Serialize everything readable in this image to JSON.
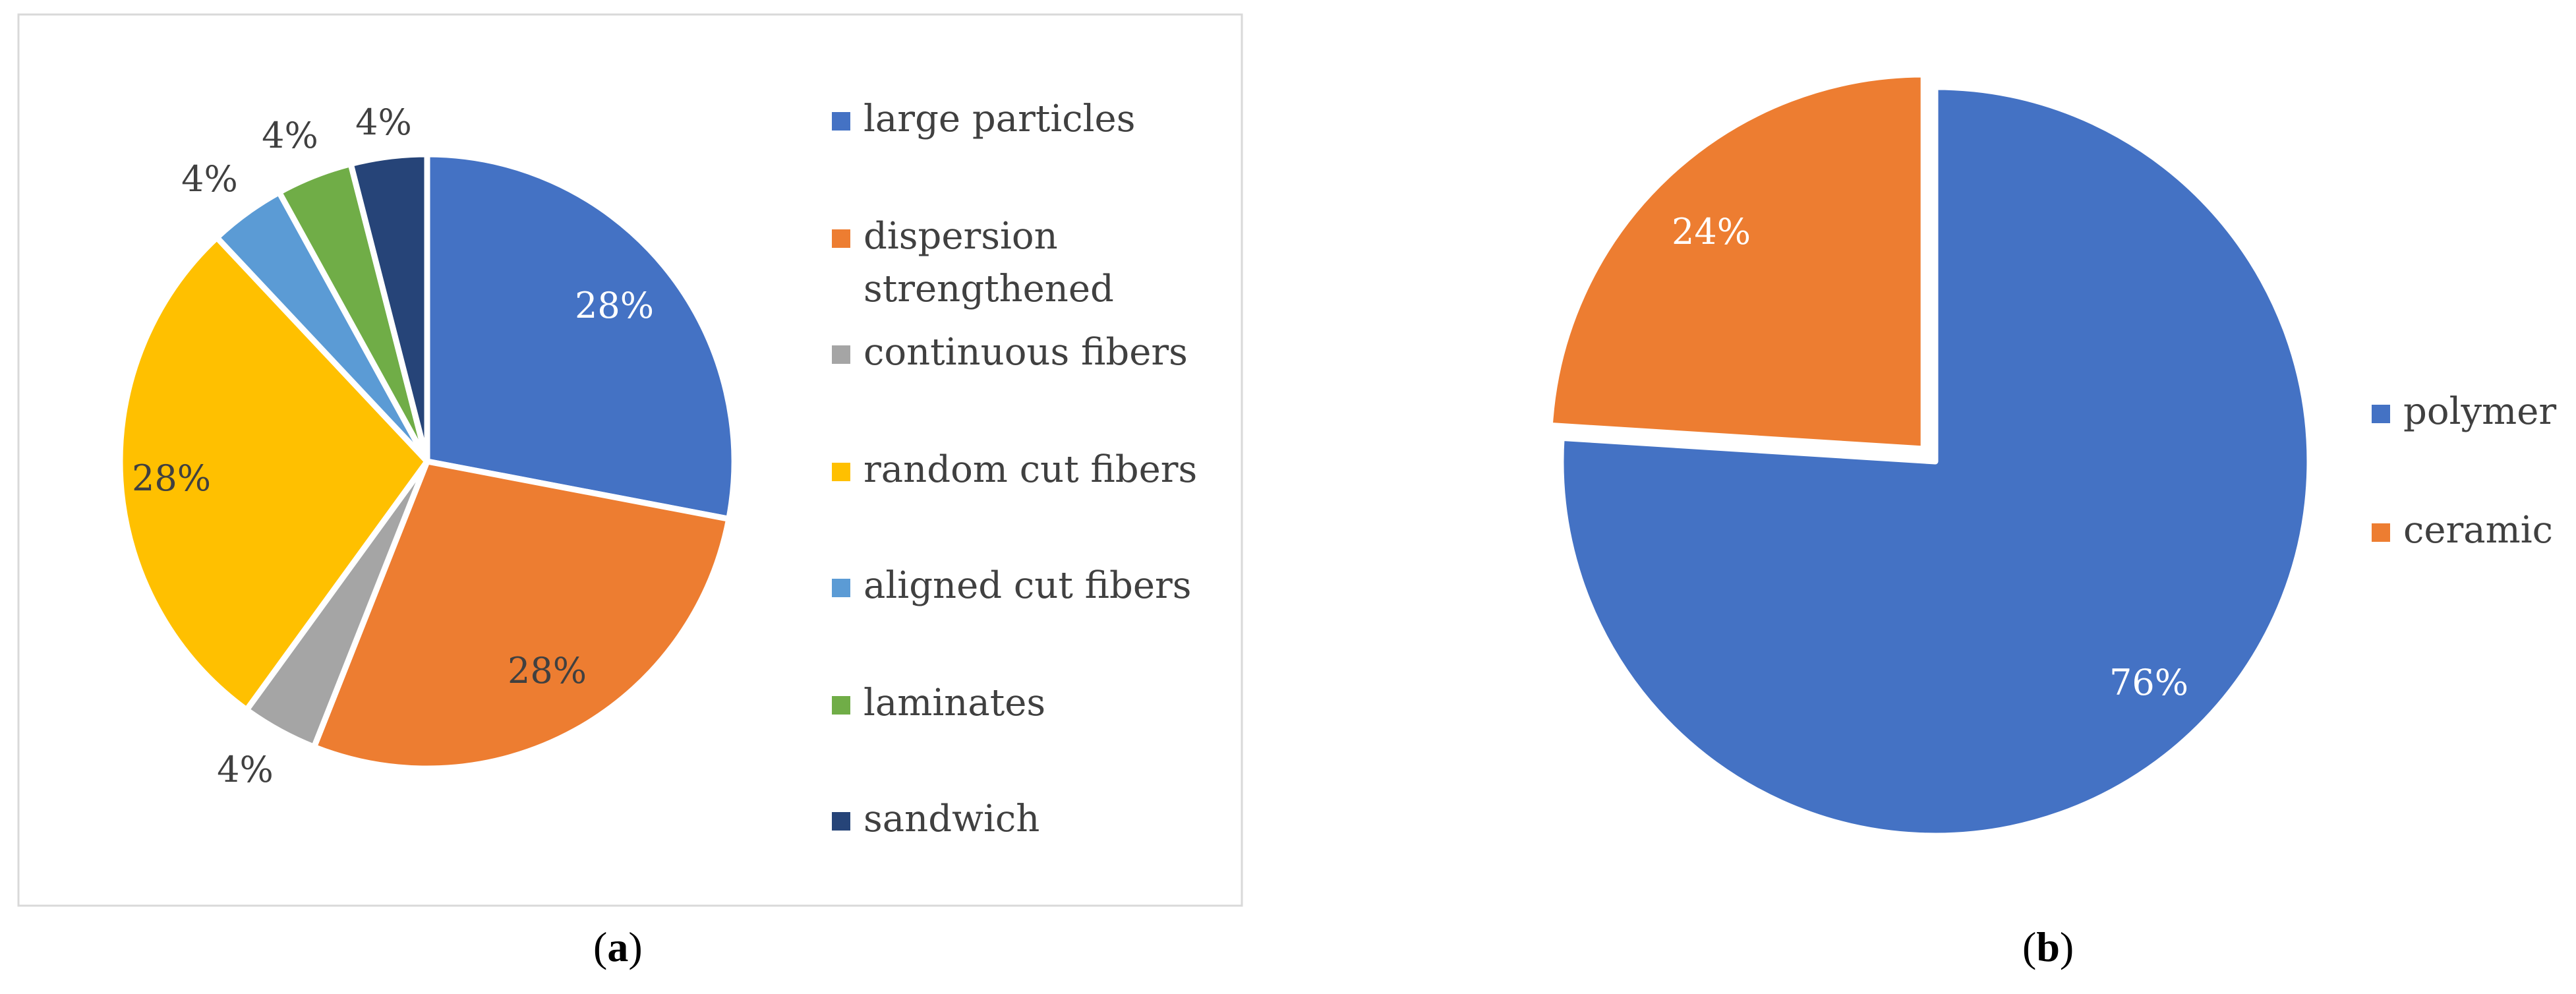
{
  "chart_data": [
    {
      "type": "pie",
      "panel": "a",
      "categories": [
        "large particles",
        "dispersion strengthened",
        "continuous fibers",
        "random cut fibers",
        "aligned cut fibers",
        "laminates",
        "sandwich"
      ],
      "legend_lines": [
        [
          "large particles"
        ],
        [
          "dispersion",
          "strengthened"
        ],
        [
          "continuous fibers"
        ],
        [
          "random cut fibers"
        ],
        [
          "aligned cut fibers"
        ],
        [
          "laminates"
        ],
        [
          "sandwich"
        ]
      ],
      "values": [
        28,
        28,
        4,
        28,
        4,
        4,
        4
      ],
      "labels": [
        "28%",
        "28%",
        "4%",
        "28%",
        "4%",
        "4%",
        "4%"
      ],
      "colors": [
        "#4472C4",
        "#ED7D31",
        "#A5A5A5",
        "#FFC000",
        "#5B9BD5",
        "#70AD47",
        "#264478"
      ],
      "label_colors": [
        "#ffffff",
        "#404040",
        "#404040",
        "#404040",
        "#404040",
        "#404040",
        "#404040"
      ],
      "legend_position": "right"
    },
    {
      "type": "pie",
      "panel": "b",
      "categories": [
        "polymer",
        "ceramic"
      ],
      "legend_lines": [
        [
          "polymer"
        ],
        [
          "ceramic"
        ]
      ],
      "values": [
        76,
        24
      ],
      "labels": [
        "76%",
        "24%"
      ],
      "colors": [
        "#4472C4",
        "#ED7D31"
      ],
      "label_colors": [
        "#ffffff",
        "#ffffff"
      ],
      "exploded": [
        false,
        true
      ],
      "legend_position": "right"
    }
  ],
  "captions": {
    "a": "a",
    "b": "b"
  }
}
